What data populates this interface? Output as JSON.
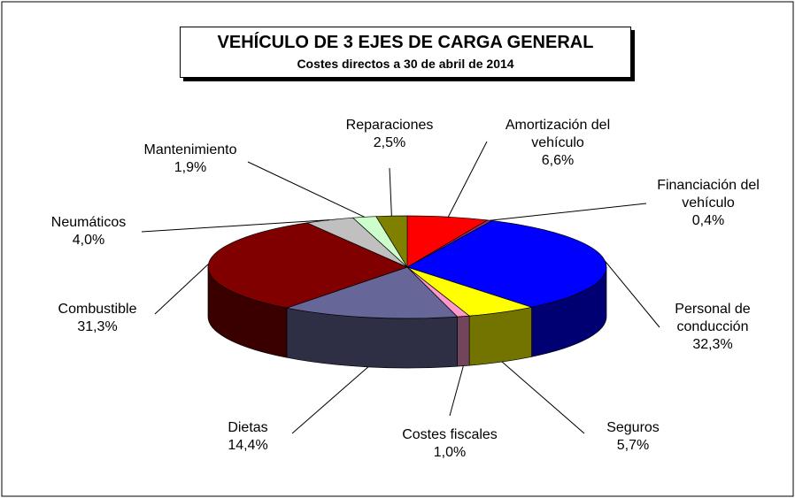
{
  "chart_data": {
    "type": "pie3d",
    "title": "VEHÍCULO DE 3 EJES DE CARGA GENERAL",
    "subtitle": "Costes directos a 30 de abril de 2014",
    "categories": [
      "Amortización del vehículo",
      "Financiación del vehículo",
      "Personal de conducción",
      "Seguros",
      "Costes fiscales",
      "Dietas",
      "Combustible",
      "Neumáticos",
      "Mantenimiento",
      "Reparaciones"
    ],
    "values": [
      6.6,
      0.4,
      32.3,
      5.7,
      1.0,
      14.4,
      31.3,
      4.0,
      1.9,
      2.5
    ],
    "value_labels": [
      "6,6%",
      "0,4%",
      "32,3%",
      "5,7%",
      "1,0%",
      "14,4%",
      "31,3%",
      "4,0%",
      "1,9%",
      "2,5%"
    ],
    "colors": [
      "#ff0000",
      "#993366",
      "#0000ff",
      "#ffff00",
      "#ff99cc",
      "#666699",
      "#800000",
      "#c0c0c0",
      "#ccffcc",
      "#808000"
    ]
  }
}
